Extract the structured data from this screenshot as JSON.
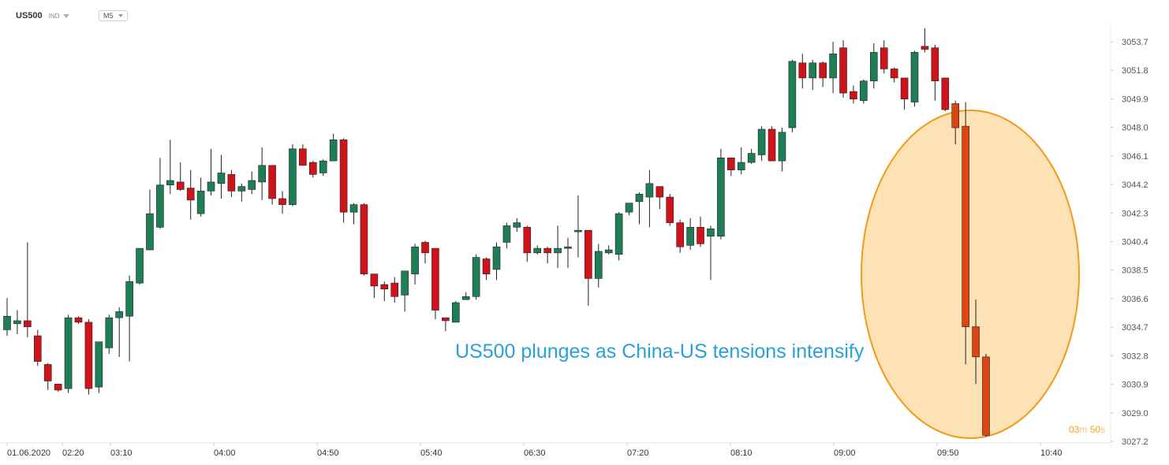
{
  "header": {
    "symbol": "US500",
    "instrument_type": "IND",
    "timeframe": "M5"
  },
  "headline": "US500 plunges as China-US tensions intensify",
  "countdown": {
    "minutes": "03",
    "minutes_unit": "m",
    "seconds": "50",
    "seconds_unit": "s"
  },
  "colors": {
    "bullish": "#1e7e55",
    "bearish": "#d0121b",
    "highlight_fill": "#fde2b6",
    "highlight_stroke": "#f39a17",
    "headline": "#2aa0d8",
    "crash_candle": "#dc4512"
  },
  "chart_data": {
    "type": "candlestick",
    "title": "",
    "ylim": [
      3027.2,
      3053.7
    ],
    "y_ticks": [
      "3053.7",
      "3051.8",
      "3049.9",
      "3048.0",
      "3046.1",
      "3044.2",
      "3042.3",
      "3040.4",
      "3038.5",
      "3036.6",
      "3034.7",
      "3032.8",
      "3030.9",
      "3029.0",
      "3027.2"
    ],
    "x_ticks": [
      "01.06.2020",
      "02:20",
      "03:10",
      "04:00",
      "04:50",
      "05:40",
      "06:30",
      "07:20",
      "08:10",
      "09:00",
      "09:50",
      "10:40"
    ],
    "candles": [
      [
        3034.6,
        3035.5,
        3036.7,
        3034.2
      ],
      [
        3035.0,
        3035.2,
        3035.9,
        3034.3
      ],
      [
        3035.2,
        3034.8,
        3040.4,
        3034.1
      ],
      [
        3034.2,
        3032.5,
        3034.6,
        3032.2
      ],
      [
        3032.3,
        3031.2,
        3032.4,
        3030.6
      ],
      [
        3031.0,
        3030.6,
        3031.0,
        3030.5
      ],
      [
        3030.7,
        3035.4,
        3035.6,
        3030.4
      ],
      [
        3035.4,
        3035.1,
        3035.5,
        3035.0
      ],
      [
        3035.1,
        3030.7,
        3035.3,
        3030.3
      ],
      [
        3030.8,
        3033.8,
        3033.8,
        3030.4
      ],
      [
        3033.4,
        3035.4,
        3035.6,
        3033.0
      ],
      [
        3035.4,
        3035.8,
        3036.1,
        3032.8
      ],
      [
        3035.5,
        3037.8,
        3038.2,
        3032.5
      ],
      [
        3037.7,
        3040.0,
        3040.0,
        3037.6
      ],
      [
        3039.9,
        3042.3,
        3043.9,
        3039.9
      ],
      [
        3041.4,
        3044.2,
        3046.0,
        3041.3
      ],
      [
        3044.2,
        3044.5,
        3047.2,
        3043.6
      ],
      [
        3044.4,
        3043.9,
        3045.7,
        3043.8
      ],
      [
        3044.0,
        3043.2,
        3045.2,
        3041.9
      ],
      [
        3042.3,
        3043.8,
        3044.7,
        3042.1
      ],
      [
        3043.8,
        3044.4,
        3046.6,
        3043.5
      ],
      [
        3044.3,
        3045.0,
        3046.2,
        3043.3
      ],
      [
        3044.9,
        3043.8,
        3045.2,
        3043.4
      ],
      [
        3043.8,
        3044.1,
        3044.3,
        3043.1
      ],
      [
        3043.9,
        3044.5,
        3045.1,
        3043.6
      ],
      [
        3044.4,
        3045.5,
        3046.7,
        3043.2
      ],
      [
        3045.5,
        3043.3,
        3045.5,
        3042.9
      ],
      [
        3043.3,
        3042.9,
        3043.8,
        3042.3
      ],
      [
        3042.9,
        3046.6,
        3046.9,
        3042.8
      ],
      [
        3046.6,
        3045.5,
        3046.9,
        3045.5
      ],
      [
        3045.7,
        3044.9,
        3045.8,
        3044.7
      ],
      [
        3045.0,
        3045.8,
        3045.9,
        3044.8
      ],
      [
        3045.8,
        3047.2,
        3047.6,
        3045.8
      ],
      [
        3047.2,
        3042.4,
        3047.3,
        3041.7
      ],
      [
        3042.4,
        3042.9,
        3043.0,
        3041.6
      ],
      [
        3042.9,
        3038.3,
        3043.0,
        3038.2
      ],
      [
        3038.3,
        3037.5,
        3038.3,
        3036.7
      ],
      [
        3037.6,
        3037.3,
        3037.8,
        3036.5
      ],
      [
        3037.7,
        3036.8,
        3038.1,
        3036.4
      ],
      [
        3036.9,
        3038.5,
        3038.5,
        3035.8
      ],
      [
        3038.3,
        3040.1,
        3040.3,
        3037.6
      ],
      [
        3040.4,
        3039.7,
        3040.5,
        3039.0
      ],
      [
        3040.0,
        3035.9,
        3040.0,
        3035.3
      ],
      [
        3035.4,
        3035.2,
        3035.3,
        3034.5
      ],
      [
        3035.1,
        3036.4,
        3036.5,
        3035.1
      ],
      [
        3036.6,
        3036.8,
        3037.1,
        3036.6
      ],
      [
        3036.8,
        3039.4,
        3039.6,
        3036.6
      ],
      [
        3039.3,
        3038.3,
        3039.4,
        3037.9
      ],
      [
        3038.6,
        3040.1,
        3040.4,
        3037.9
      ],
      [
        3040.4,
        3041.5,
        3041.7,
        3040.0
      ],
      [
        3041.4,
        3041.7,
        3042.0,
        3041.1
      ],
      [
        3041.4,
        3039.7,
        3041.5,
        3039.1
      ],
      [
        3039.7,
        3040.0,
        3040.2,
        3039.6
      ],
      [
        3040.0,
        3039.7,
        3040.1,
        3039.0
      ],
      [
        3039.7,
        3040.0,
        3041.5,
        3038.7
      ],
      [
        3040.0,
        3040.1,
        3040.7,
        3038.7
      ],
      [
        3041.1,
        3041.2,
        3043.5,
        3039.4
      ],
      [
        3041.2,
        3038.0,
        3041.2,
        3036.2
      ],
      [
        3038.0,
        3039.8,
        3040.3,
        3037.4
      ],
      [
        3039.7,
        3039.9,
        3040.2,
        3039.6
      ],
      [
        3039.6,
        3042.3,
        3042.4,
        3039.2
      ],
      [
        3042.4,
        3043.0,
        3042.8,
        3042.2
      ],
      [
        3043.1,
        3043.6,
        3043.7,
        3041.6
      ],
      [
        3043.4,
        3044.3,
        3045.2,
        3041.4
      ],
      [
        3044.1,
        3043.4,
        3043.8,
        3042.6
      ],
      [
        3043.4,
        3041.7,
        3043.6,
        3041.5
      ],
      [
        3041.7,
        3040.1,
        3041.9,
        3039.7
      ],
      [
        3040.2,
        3041.4,
        3042.0,
        3039.9
      ],
      [
        3041.4,
        3040.3,
        3042.1,
        3040.1
      ],
      [
        3040.8,
        3041.3,
        3041.5,
        3037.9
      ],
      [
        3040.8,
        3046.0,
        3046.6,
        3040.6
      ],
      [
        3046.0,
        3045.2,
        3045.6,
        3044.8
      ],
      [
        3045.2,
        3045.7,
        3046.7,
        3044.9
      ],
      [
        3045.7,
        3046.3,
        3046.6,
        3045.6
      ],
      [
        3046.2,
        3047.9,
        3048.1,
        3045.8
      ],
      [
        3047.9,
        3045.8,
        3048.1,
        3045.8
      ],
      [
        3045.8,
        3047.7,
        3048.0,
        3045.1
      ],
      [
        3048.0,
        3052.4,
        3052.5,
        3047.7
      ],
      [
        3052.3,
        3051.3,
        3052.9,
        3050.6
      ],
      [
        3051.3,
        3052.3,
        3052.5,
        3050.5
      ],
      [
        3052.3,
        3051.3,
        3052.4,
        3050.7
      ],
      [
        3051.3,
        3052.9,
        3053.7,
        3050.3
      ],
      [
        3053.3,
        3050.3,
        3053.8,
        3050.0
      ],
      [
        3050.4,
        3049.9,
        3050.8,
        3049.6
      ],
      [
        3049.8,
        3051.1,
        3051.2,
        3049.6
      ],
      [
        3051.1,
        3053.0,
        3053.6,
        3050.6
      ],
      [
        3053.3,
        3051.9,
        3053.8,
        3051.6
      ],
      [
        3051.9,
        3051.3,
        3052.0,
        3051.0
      ],
      [
        3051.3,
        3049.9,
        3051.3,
        3049.2
      ],
      [
        3049.7,
        3053.0,
        3053.1,
        3049.4
      ],
      [
        3053.4,
        3053.2,
        3054.6,
        3053.0
      ],
      [
        3053.3,
        3051.1,
        3053.5,
        3049.8
      ],
      [
        3051.3,
        3049.2,
        3051.3,
        3049.1
      ],
      [
        3049.6,
        3048.0,
        3049.8,
        3046.9
      ],
      [
        3048.1,
        3034.8,
        3049.7,
        3032.3
      ],
      [
        3034.8,
        3032.8,
        3036.6,
        3031.0
      ],
      [
        3032.8,
        3027.6,
        3033.0,
        3027.5
      ]
    ]
  }
}
